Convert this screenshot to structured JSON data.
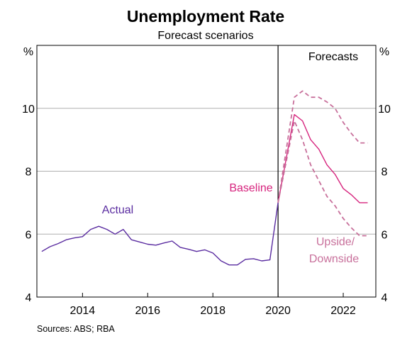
{
  "colors": {
    "actual": "#5a2ca0",
    "baseline": "#d6237d",
    "scenario": "#c8709b",
    "grid": "#b0b0b0",
    "axis": "#000000"
  },
  "chart_data": {
    "type": "line",
    "title": "Unemployment Rate",
    "subtitle": "Forecast scenarios",
    "y_unit_left": "%",
    "y_unit_right": "%",
    "ylim": [
      4,
      12
    ],
    "yticks": [
      4,
      6,
      8,
      10
    ],
    "xlim": [
      2012.6,
      2023.0
    ],
    "xticks": [
      2014,
      2016,
      2018,
      2020,
      2022
    ],
    "grid": "horizontal",
    "forecast_divider_x": 2020.0,
    "annotations": {
      "forecasts": "Forecasts",
      "actual": "Actual",
      "baseline": "Baseline",
      "scenario_line1": "Upside/",
      "scenario_line2": "Downside"
    },
    "source": "Sources:   ABS; RBA",
    "series": [
      {
        "name": "Actual",
        "style": "solid",
        "color_key": "actual",
        "x": [
          2012.75,
          2013.0,
          2013.25,
          2013.5,
          2013.75,
          2014.0,
          2014.25,
          2014.5,
          2014.75,
          2015.0,
          2015.25,
          2015.5,
          2015.75,
          2016.0,
          2016.25,
          2016.5,
          2016.75,
          2017.0,
          2017.25,
          2017.5,
          2017.75,
          2018.0,
          2018.25,
          2018.5,
          2018.75,
          2019.0,
          2019.25,
          2019.5,
          2019.75,
          2020.0
        ],
        "y": [
          5.45,
          5.6,
          5.7,
          5.82,
          5.88,
          5.92,
          6.15,
          6.25,
          6.15,
          6.0,
          6.15,
          5.82,
          5.75,
          5.68,
          5.65,
          5.72,
          5.78,
          5.58,
          5.52,
          5.45,
          5.5,
          5.4,
          5.15,
          5.02,
          5.02,
          5.2,
          5.22,
          5.15,
          5.18,
          7.0
        ]
      },
      {
        "name": "Baseline",
        "style": "solid",
        "color_key": "baseline",
        "x": [
          2020.0,
          2020.5,
          2020.75,
          2021.0,
          2021.25,
          2021.5,
          2021.75,
          2022.0,
          2022.25,
          2022.5,
          2022.75
        ],
        "y": [
          7.0,
          9.8,
          9.6,
          9.0,
          8.7,
          8.2,
          7.9,
          7.45,
          7.25,
          7.0,
          7.0
        ]
      },
      {
        "name": "Upside",
        "style": "dashed",
        "color_key": "scenario",
        "x": [
          2020.0,
          2020.5,
          2020.75,
          2021.0,
          2021.25,
          2021.5,
          2021.75,
          2022.0,
          2022.25,
          2022.5,
          2022.75
        ],
        "y": [
          7.0,
          10.35,
          10.55,
          10.35,
          10.35,
          10.2,
          10.0,
          9.55,
          9.2,
          8.9,
          8.9
        ]
      },
      {
        "name": "Downside",
        "style": "dashed",
        "color_key": "scenario",
        "x": [
          2020.0,
          2020.5,
          2020.75,
          2021.0,
          2021.25,
          2021.5,
          2021.75,
          2022.0,
          2022.25,
          2022.5,
          2022.75
        ],
        "y": [
          7.0,
          9.6,
          9.0,
          8.2,
          7.7,
          7.2,
          6.9,
          6.5,
          6.2,
          5.95,
          5.95
        ]
      }
    ]
  }
}
